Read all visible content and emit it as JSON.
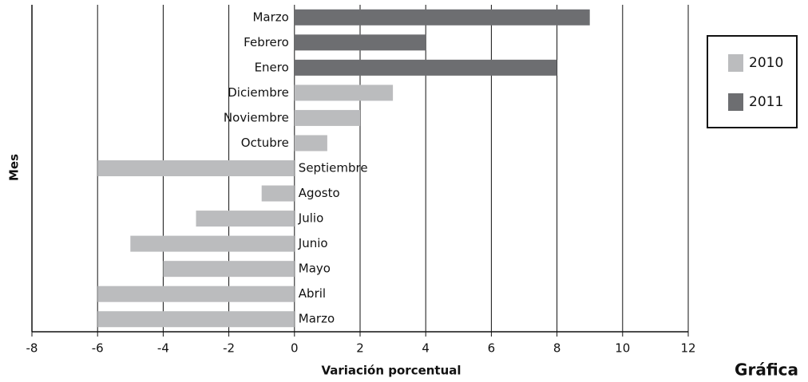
{
  "chart_data": {
    "type": "barh",
    "caption": "Gráfica",
    "xlabel": "Variación porcentual",
    "ylabel": "Mes",
    "categories": [
      "Marzo",
      "Febrero",
      "Enero",
      "Diciembre",
      "Noviembre",
      "Octubre",
      "Septiembre",
      "Agosto",
      "Julio",
      "Junio",
      "Mayo",
      "Abril",
      "Marzo"
    ],
    "series": [
      {
        "name": "2010",
        "color": "#bbbcbe",
        "values": [
          null,
          null,
          null,
          3,
          2,
          1,
          -6,
          -1,
          -3,
          -5,
          -4,
          -6,
          -6
        ]
      },
      {
        "name": "2011",
        "color": "#6d6e71",
        "values": [
          9,
          4,
          8,
          null,
          null,
          null,
          null,
          null,
          null,
          null,
          null,
          null,
          null
        ]
      }
    ],
    "xlim": [
      -8,
      12
    ],
    "xticks": [
      -8,
      -6,
      -4,
      -2,
      0,
      2,
      4,
      6,
      8,
      10,
      12
    ],
    "grid": true,
    "legend": "right"
  }
}
